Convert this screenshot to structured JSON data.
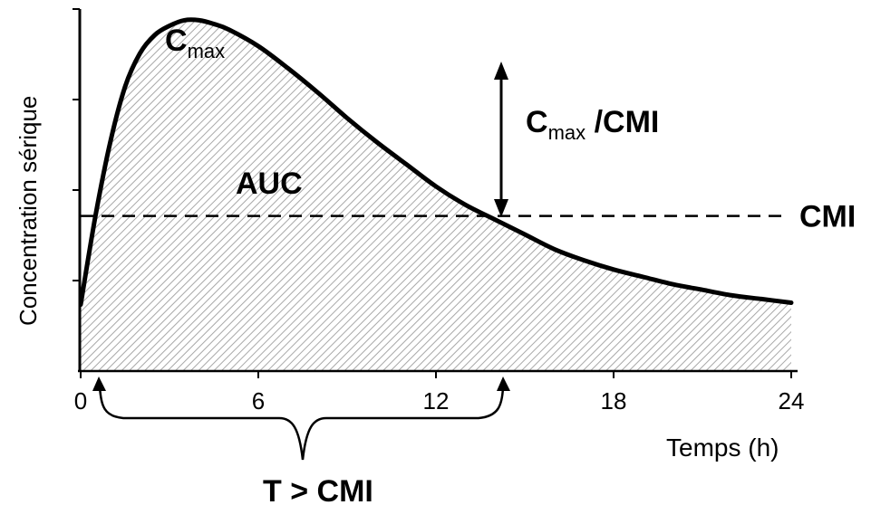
{
  "chart_data": {
    "type": "area",
    "title": "",
    "xlabel": "Temps (h)",
    "ylabel": "Concentration sérique",
    "x_ticks": [
      0,
      6,
      12,
      18,
      24
    ],
    "xlim": [
      0,
      24
    ],
    "ylim": [
      0,
      100
    ],
    "grid": false,
    "series": [
      {
        "x": [
          0,
          0.5,
          1,
          1.5,
          2,
          2.5,
          3,
          3.5,
          4,
          4.5,
          5,
          6,
          7,
          8,
          9,
          10,
          11,
          12,
          13,
          14,
          15,
          16,
          17,
          18,
          19,
          20,
          21,
          22,
          23,
          24
        ],
        "y": [
          18,
          42,
          62,
          77,
          86,
          91,
          93.5,
          95,
          95,
          94,
          92.5,
          88,
          82,
          75.5,
          68.5,
          62,
          56,
          50,
          45,
          41,
          37,
          33,
          30,
          27.5,
          25.5,
          23.5,
          22,
          20.5,
          19.5,
          18.5
        ]
      }
    ],
    "threshold": {
      "label": "CMI",
      "value": 42
    },
    "annotations": {
      "cmax": {
        "main": "C",
        "sub": "max",
        "x": 4,
        "y": 95
      },
      "auc": "AUC",
      "ratio": {
        "main": "C",
        "sub": "max",
        "suffix": " /CMI"
      },
      "time_above": "T > CMI",
      "time_above_range": [
        0.5,
        14.2
      ]
    },
    "y_ticks_unlabeled": 4
  },
  "colors": {
    "curve": "#000000",
    "hatch": "#a8a8a8",
    "axis": "#000000"
  }
}
